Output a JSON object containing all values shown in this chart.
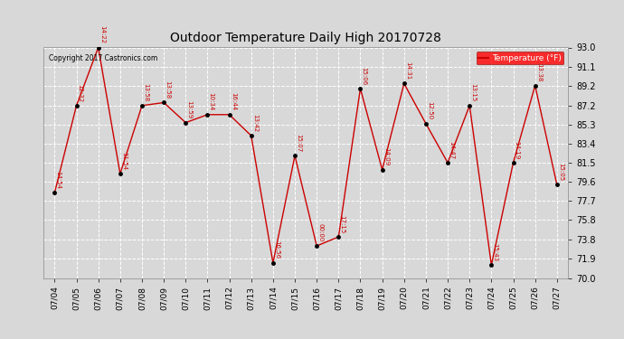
{
  "title": "Outdoor Temperature Daily High 20170728",
  "copyright": "Copyright 2017 Castronics.com",
  "legend_label": "Temperature (°F)",
  "dates": [
    "07/04",
    "07/05",
    "07/06",
    "07/07",
    "07/08",
    "07/09",
    "07/10",
    "07/11",
    "07/12",
    "07/13",
    "07/14",
    "07/15",
    "07/16",
    "07/17",
    "07/18",
    "07/19",
    "07/20",
    "07/21",
    "07/22",
    "07/23",
    "07/24",
    "07/25",
    "07/26",
    "07/27"
  ],
  "temps": [
    78.5,
    87.2,
    93.0,
    80.4,
    87.2,
    87.5,
    85.5,
    86.3,
    86.3,
    84.2,
    71.5,
    82.2,
    73.2,
    74.1,
    88.9,
    80.8,
    89.4,
    85.4,
    81.5,
    87.2,
    71.3,
    81.5,
    89.2,
    79.3
  ],
  "time_labels": [
    "14:54",
    "12:32",
    "14:22",
    "11:54",
    "13:58",
    "13:58",
    "13:59",
    "10:34",
    "16:44",
    "13:42",
    "16:56",
    "15:07",
    "00:00",
    "17:15",
    "15:06",
    "14:09",
    "14:31",
    "12:50",
    "14:47",
    "13:15",
    "15:43",
    "14:19",
    "13:38",
    "15:05"
  ],
  "line_color": "#cc0000",
  "marker_color": "#000000",
  "label_color": "#cc0000",
  "bg_color": "#d8d8d8",
  "grid_color": "#ffffff",
  "ylim_min": 70.0,
  "ylim_max": 93.0,
  "yticks": [
    70.0,
    71.9,
    73.8,
    75.8,
    77.7,
    79.6,
    81.5,
    83.4,
    85.3,
    87.2,
    89.2,
    91.1,
    93.0
  ]
}
